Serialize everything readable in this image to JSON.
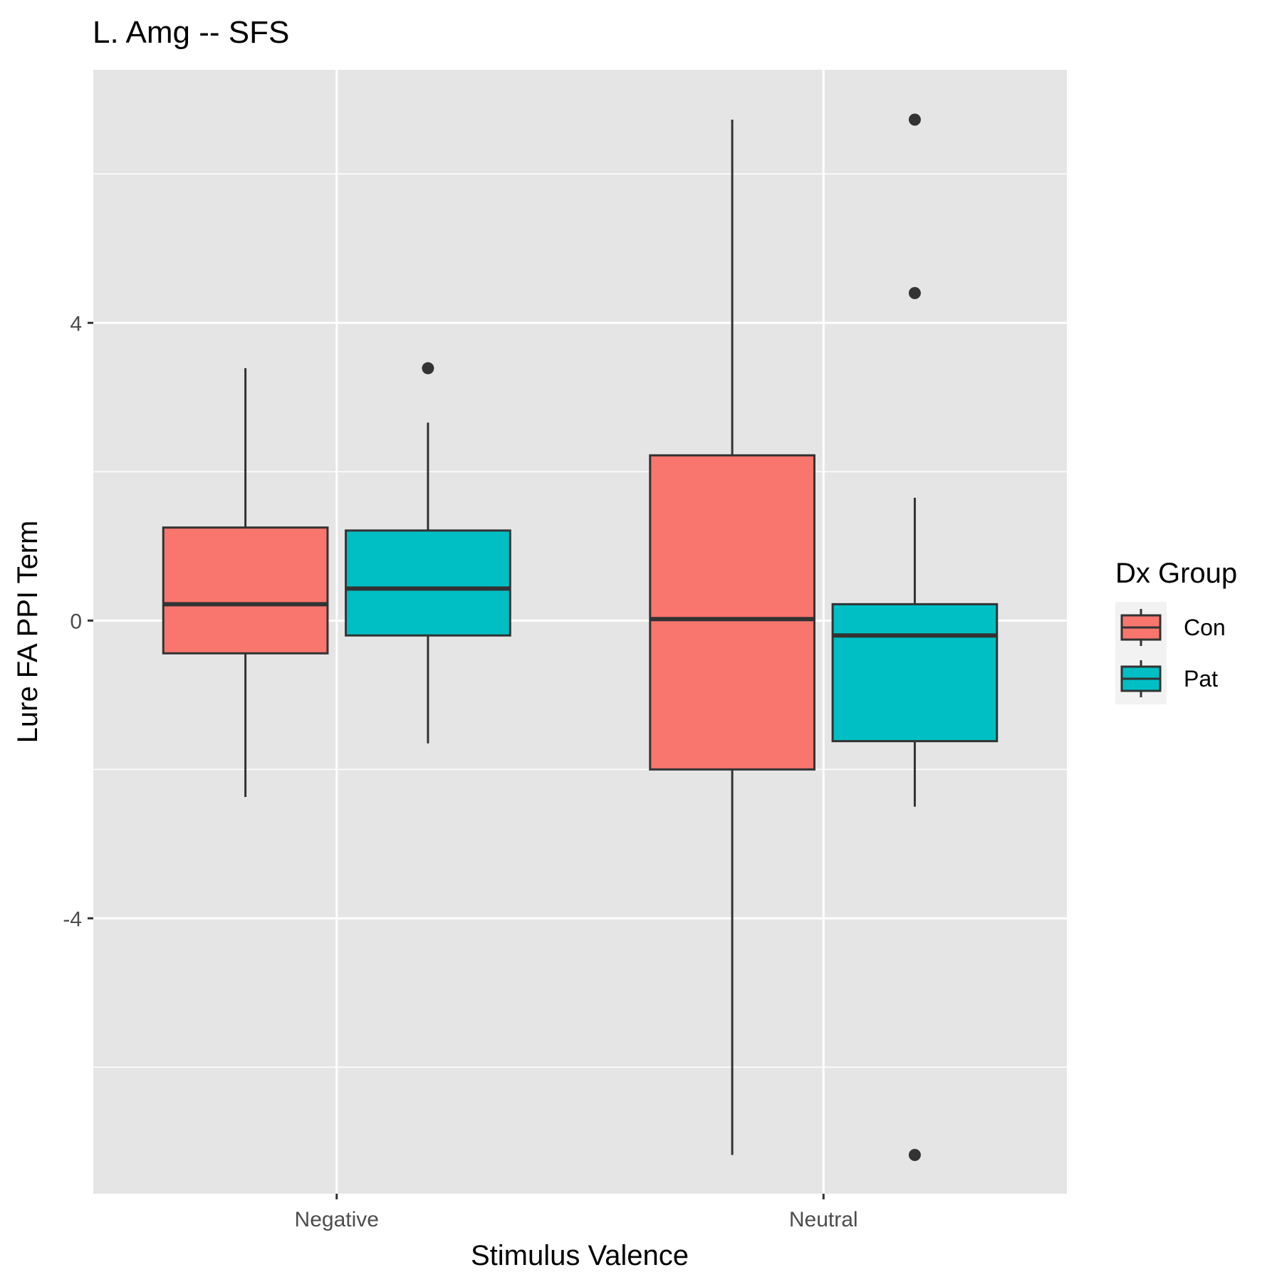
{
  "chart_data": {
    "type": "boxplot",
    "title": "L. Amg -- SFS",
    "xlabel": "Stimulus Valence",
    "ylabel": "Lure FA PPI Term",
    "categories": [
      "Negative",
      "Neutral"
    ],
    "ylim": [
      -7.7,
      7.4
    ],
    "yticks": [
      -4,
      0,
      4
    ],
    "grid": true,
    "legend": {
      "title": "Dx Group",
      "position": "right"
    },
    "series": [
      {
        "name": "Con",
        "color": "#F8766D",
        "boxes": [
          {
            "category": "Negative",
            "whisker_low": -2.37,
            "q1": -0.44,
            "median": 0.22,
            "q3": 1.25,
            "whisker_high": 3.39,
            "outliers": []
          },
          {
            "category": "Neutral",
            "whisker_low": -7.18,
            "q1": -2.0,
            "median": 0.02,
            "q3": 2.22,
            "whisker_high": 6.73,
            "outliers": []
          }
        ]
      },
      {
        "name": "Pat",
        "color": "#00BFC4",
        "boxes": [
          {
            "category": "Negative",
            "whisker_low": -1.65,
            "q1": -0.2,
            "median": 0.43,
            "q3": 1.21,
            "whisker_high": 2.66,
            "outliers": [
              3.39
            ]
          },
          {
            "category": "Neutral",
            "whisker_low": -2.5,
            "q1": -1.62,
            "median": -0.2,
            "q3": 0.22,
            "whisker_high": 1.65,
            "outliers": [
              6.73,
              4.4,
              -7.18
            ]
          }
        ]
      }
    ]
  }
}
